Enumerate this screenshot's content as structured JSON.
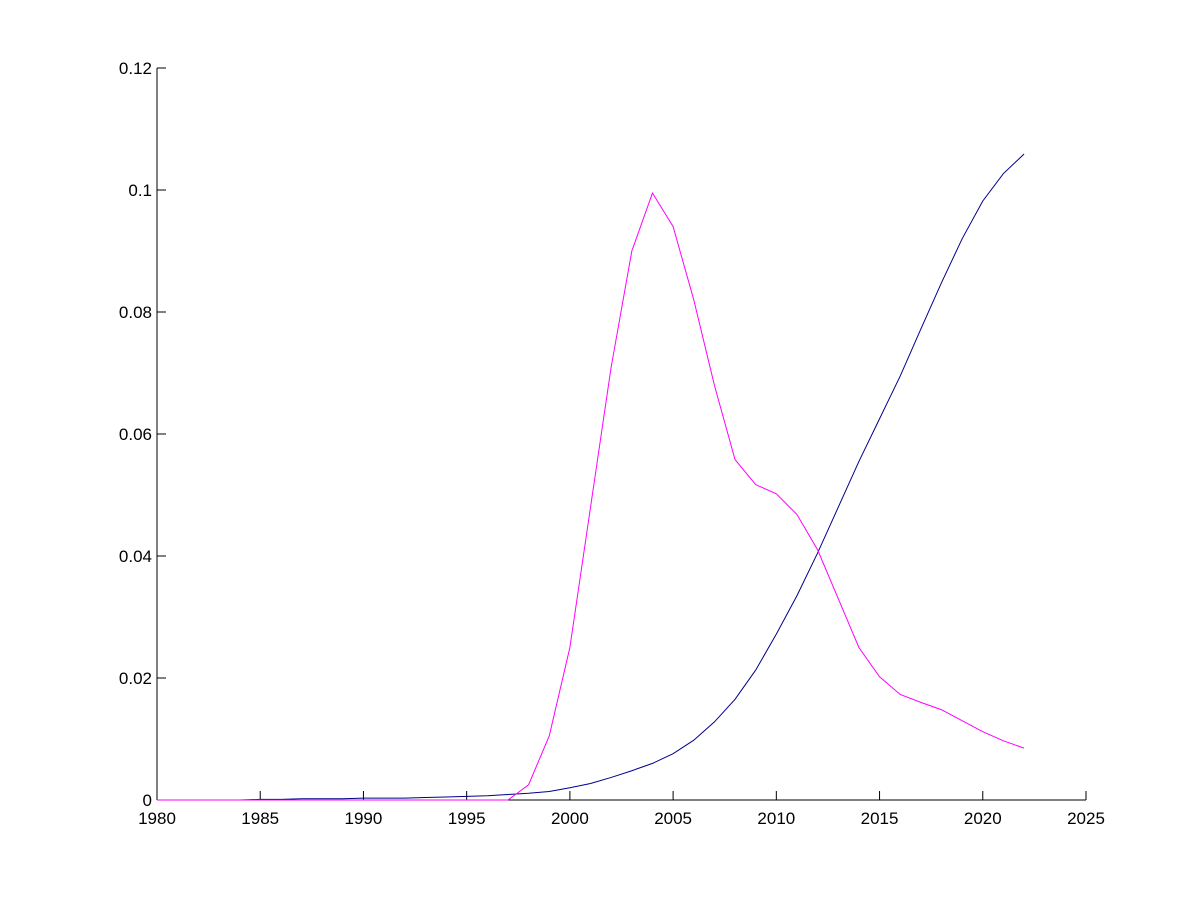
{
  "chart_data": {
    "type": "line",
    "x": [
      1980,
      1981,
      1982,
      1983,
      1984,
      1985,
      1986,
      1987,
      1988,
      1989,
      1990,
      1991,
      1992,
      1993,
      1994,
      1995,
      1996,
      1997,
      1998,
      1999,
      2000,
      2001,
      2002,
      2003,
      2004,
      2005,
      2006,
      2007,
      2008,
      2009,
      2010,
      2011,
      2012,
      2013,
      2014,
      2015,
      2016,
      2017,
      2018,
      2019,
      2020,
      2021,
      2022
    ],
    "series": [
      {
        "color": "#00008b",
        "values": [
          0,
          0,
          0,
          0,
          0,
          0.0001,
          0.0001,
          0.0002,
          0.0002,
          0.0002,
          0.0003,
          0.0003,
          0.0003,
          0.0004,
          0.0005,
          0.0006,
          0.0007,
          0.0009,
          0.0011,
          0.0014,
          0.002,
          0.0027,
          0.0037,
          0.0048,
          0.006,
          0.0076,
          0.0098,
          0.0128,
          0.0165,
          0.0213,
          0.0272,
          0.0335,
          0.0405,
          0.048,
          0.0555,
          0.0625,
          0.0695,
          0.0772,
          0.0848,
          0.092,
          0.0982,
          0.1027,
          0.1059
        ]
      },
      {
        "color": "#ff00ff",
        "values": [
          0,
          0,
          0,
          0,
          0,
          0,
          0,
          0,
          0,
          0,
          0,
          0,
          0,
          0,
          0,
          0,
          0,
          0,
          0.0025,
          0.0105,
          0.025,
          0.048,
          0.071,
          0.09,
          0.0995,
          0.094,
          0.082,
          0.068,
          0.0558,
          0.0517,
          0.0502,
          0.0468,
          0.041,
          0.033,
          0.025,
          0.0202,
          0.0173,
          0.016,
          0.0148,
          0.013,
          0.0112,
          0.0097,
          0.0085
        ]
      }
    ],
    "xlim": [
      1980,
      2025
    ],
    "xticks": [
      1980,
      1985,
      1990,
      1995,
      2000,
      2005,
      2010,
      2015,
      2020,
      2025
    ],
    "ylim": [
      0,
      0.12
    ],
    "yticks": [
      0,
      0.02,
      0.04,
      0.06,
      0.08,
      0.1,
      0.12
    ]
  }
}
